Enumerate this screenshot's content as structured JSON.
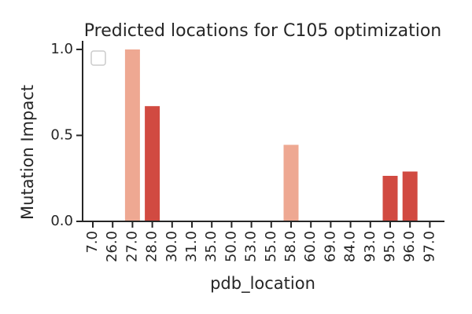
{
  "chart_data": {
    "type": "bar",
    "title": "Predicted locations for C105 optimization",
    "xlabel": "pdb_location",
    "ylabel": "Mutation Impact",
    "categories": [
      "7.0",
      "26.0",
      "27.0",
      "28.0",
      "30.0",
      "31.0",
      "35.0",
      "50.0",
      "53.0",
      "55.0",
      "58.0",
      "60.0",
      "69.0",
      "84.0",
      "93.0",
      "95.0",
      "96.0",
      "97.0"
    ],
    "values": [
      0,
      0,
      1.0,
      0.67,
      0,
      0,
      0,
      0,
      0,
      0,
      0.445,
      0,
      0,
      0,
      0,
      0.265,
      0.29,
      0
    ],
    "bar_colors": [
      "#d14a41",
      "#d14a41",
      "#eea892",
      "#d14a41",
      "#d14a41",
      "#d14a41",
      "#d14a41",
      "#d14a41",
      "#d14a41",
      "#d14a41",
      "#eea892",
      "#d14a41",
      "#d14a41",
      "#d14a41",
      "#d14a41",
      "#d14a41",
      "#d14a41",
      "#d14a41"
    ],
    "ylim": [
      0,
      1.05
    ],
    "yticks": [
      0.0,
      0.5,
      1.0
    ],
    "ytick_labels": [
      "0.0",
      "0.5",
      "1.0"
    ],
    "legend": {
      "placement": "top-left",
      "entries": []
    },
    "grid": false
  }
}
